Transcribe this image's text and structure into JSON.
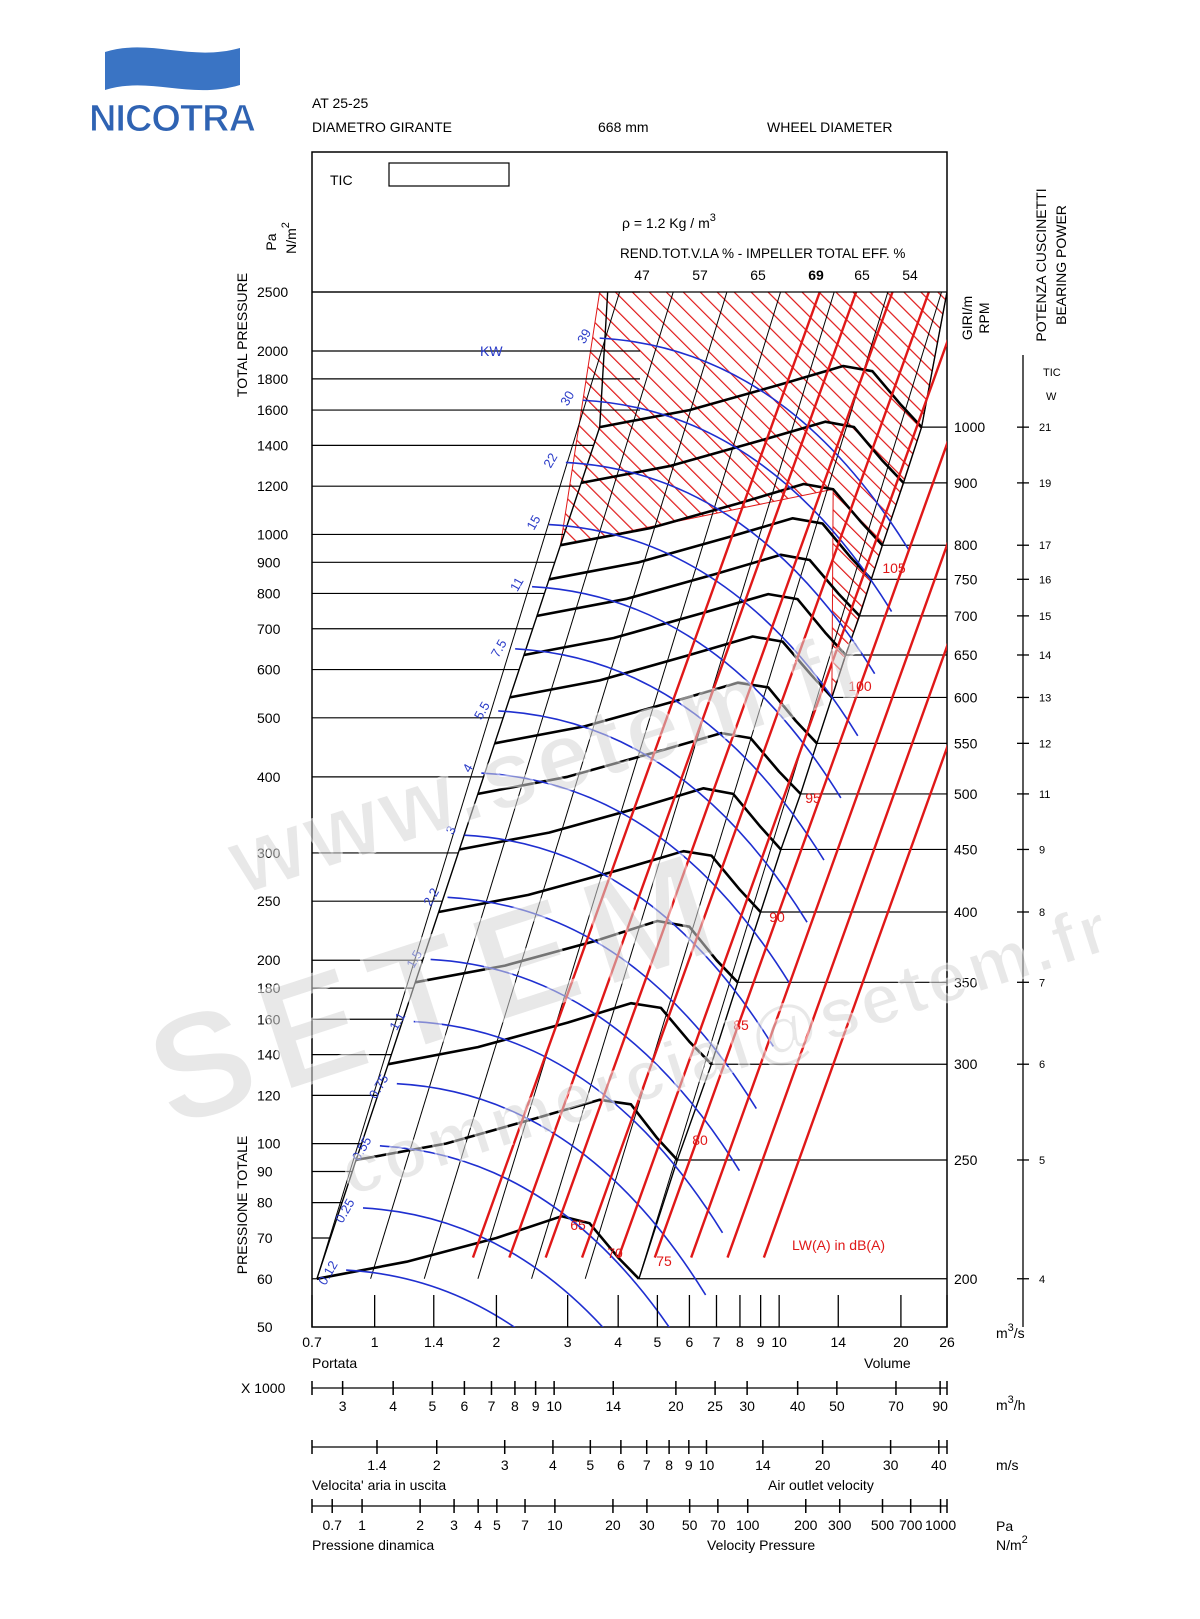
{
  "brand": {
    "name": "NICOTRA",
    "colors": {
      "wave": "#3a74c4",
      "text": "#2f63b3",
      "accent": "#ffffff"
    }
  },
  "header": {
    "model": "AT 25-25",
    "diam_label_it": "DIAMETRO GIRANTE",
    "diam_value": "668 mm",
    "diam_label_en": "WHEEL DIAMETER"
  },
  "chart_labels": {
    "tic": "TIC",
    "rho_prefix": "ρ = 1.2 Kg / m",
    "rho_exp": "3",
    "eff_title": "REND.TOT.V.LA % - IMPELLER TOTAL EFF. %",
    "kw": "KW",
    "rpm_it": "GIRI/m",
    "rpm_en": "RPM",
    "bearing_it": "POTENZA CUSCINETTI",
    "bearing_en": "BEARING POWER",
    "bearing_tic": "TIC",
    "bearing_w": "W",
    "total_pressure": "TOTAL PRESSURE",
    "pressione_totale": "PRESSIONE TOTALE",
    "pa": "Pa",
    "nm2": "N/m",
    "nm2_exp": "2",
    "lw": "LW(A) in dB(A)",
    "m3s": "m",
    "m3s_exp": "3",
    "m3s_suffix": "/s",
    "portata": "Portata",
    "volume": "Volume",
    "x1000": "X 1000",
    "m3h": "m",
    "m3h_exp": "3",
    "m3h_suffix": "/h",
    "ms": "m/s",
    "vel_it": "Velocita' aria in uscita",
    "vel_en": "Air outlet velocity",
    "pd_unit1": "Pa",
    "pd_unit2": "N/m",
    "pd_unit2_exp": "2",
    "pd_it": "Pressione dinamica",
    "pd_en": "Velocity Pressure"
  },
  "colors": {
    "curve": "#000000",
    "power": "#1f2fd0",
    "power_label": "#2a3bc8",
    "noise": "#e01818",
    "hatch": "#e01818",
    "watermark": "#c9c9c9"
  },
  "watermark": {
    "line1": "www.setem.fr",
    "line2": "SETEM",
    "line3": "commercial@setem.fr"
  },
  "chart_data": {
    "type": "line",
    "title": "AT 25-25",
    "xlabel": "Portata / Volume (m3/s)",
    "ylabel": "TOTAL PRESSURE (Pa)",
    "xscale": "log",
    "yscale": "log",
    "xlim": [
      0.7,
      26
    ],
    "ylim": [
      50,
      2500
    ],
    "x_ticks": [
      "0.7",
      "1",
      "1.4",
      "2",
      "3",
      "4",
      "5",
      "6",
      "7",
      "8",
      "9",
      "10",
      "14",
      "20",
      "26"
    ],
    "y_ticks": [
      "2500",
      "2000",
      "1800",
      "1600",
      "1400",
      "1200",
      "1000",
      "900",
      "800",
      "700",
      "600",
      "500",
      "400",
      "300",
      "250",
      "200",
      "180",
      "160",
      "140",
      "120",
      "100",
      "90",
      "80",
      "70",
      "60",
      "50"
    ],
    "efficiency_labels": [
      "47",
      "57",
      "65",
      "69",
      "65",
      "54"
    ],
    "power_kw_labels": [
      "0.12",
      "0.25",
      "0.55",
      "0.75",
      "1.1",
      "1.5",
      "2.2",
      "3",
      "4",
      "5.5",
      "7.5",
      "11",
      "15",
      "22",
      "30",
      "39"
    ],
    "noise_dba_labels": [
      "65",
      "70",
      "75",
      "80",
      "85",
      "90",
      "95",
      "100",
      "105"
    ],
    "rpm_labels": [
      "1000",
      "900",
      "800",
      "750",
      "700",
      "650",
      "600",
      "550",
      "500",
      "450",
      "400",
      "350",
      "300",
      "250",
      "200"
    ],
    "bearing_power_labels": [
      "21",
      "19",
      "17",
      "16",
      "15",
      "14",
      "13",
      "12",
      "11",
      "9",
      "8",
      "7",
      "6",
      "5",
      "4"
    ],
    "secondary_axes": {
      "m3h_x1000": [
        "3",
        "4",
        "5",
        "6",
        "7",
        "8",
        "9",
        "10",
        "14",
        "20",
        "25",
        "30",
        "40",
        "50",
        "70",
        "90"
      ],
      "outlet_velocity_ms": [
        "1.4",
        "2",
        "3",
        "4",
        "5",
        "6",
        "7",
        "8",
        "9",
        "10",
        "14",
        "20",
        "30",
        "40"
      ],
      "velocity_pressure_pa": [
        "0.7",
        "1",
        "2",
        "3",
        "4",
        "5",
        "7",
        "10",
        "20",
        "30",
        "50",
        "70",
        "100",
        "200",
        "300",
        "500",
        "700",
        "1000"
      ]
    },
    "series": [
      {
        "rpm": 200,
        "x": [
          0.72,
          1.2,
          2.0,
          2.9,
          3.4,
          4.0,
          4.5
        ],
        "y": [
          60,
          64,
          70,
          76,
          74,
          65,
          60
        ]
      },
      {
        "rpm": 250,
        "x": [
          0.9,
          1.5,
          2.5,
          3.6,
          4.3,
          5.0,
          5.6
        ],
        "y": [
          94,
          100,
          110,
          118,
          116,
          102,
          94
        ]
      },
      {
        "rpm": 300,
        "x": [
          1.08,
          1.8,
          3.0,
          4.3,
          5.1,
          6.0,
          6.8
        ],
        "y": [
          135,
          144,
          158,
          170,
          167,
          147,
          135
        ]
      },
      {
        "rpm": 350,
        "x": [
          1.26,
          2.1,
          3.5,
          5.0,
          6.0,
          7.0,
          7.9
        ],
        "y": [
          184,
          196,
          215,
          232,
          227,
          200,
          184
        ]
      },
      {
        "rpm": 400,
        "x": [
          1.44,
          2.4,
          4.0,
          5.8,
          6.8,
          8.0,
          9.0
        ],
        "y": [
          240,
          256,
          281,
          302,
          297,
          261,
          240
        ]
      },
      {
        "rpm": 450,
        "x": [
          1.62,
          2.7,
          4.5,
          6.5,
          7.7,
          9.0,
          10.1
        ],
        "y": [
          304,
          324,
          356,
          383,
          375,
          331,
          304
        ]
      },
      {
        "rpm": 500,
        "x": [
          1.8,
          3.0,
          5.0,
          7.2,
          8.5,
          10.0,
          11.3
        ],
        "y": [
          375,
          400,
          440,
          472,
          463,
          408,
          375
        ]
      },
      {
        "rpm": 550,
        "x": [
          1.98,
          3.3,
          5.5,
          7.9,
          9.4,
          11.0,
          12.4
        ],
        "y": [
          454,
          484,
          532,
          571,
          561,
          494,
          454
        ]
      },
      {
        "rpm": 600,
        "x": [
          2.16,
          3.6,
          6.0,
          8.6,
          10.2,
          12.0,
          13.5
        ],
        "y": [
          540,
          576,
          634,
          680,
          667,
          588,
          540
        ]
      },
      {
        "rpm": 650,
        "x": [
          2.34,
          3.9,
          6.5,
          9.4,
          11.1,
          13.0,
          14.6
        ],
        "y": [
          634,
          676,
          744,
          798,
          783,
          690,
          634
        ]
      },
      {
        "rpm": 700,
        "x": [
          2.52,
          4.2,
          7.0,
          10.1,
          11.9,
          14.0,
          15.8
        ],
        "y": [
          735,
          784,
          862,
          926,
          908,
          800,
          735
        ]
      },
      {
        "rpm": 750,
        "x": [
          2.7,
          4.5,
          7.5,
          10.8,
          12.8,
          15.0,
          16.9
        ],
        "y": [
          844,
          900,
          990,
          1063,
          1042,
          918,
          844
        ]
      },
      {
        "rpm": 800,
        "x": [
          2.88,
          4.8,
          8.0,
          11.5,
          13.6,
          16.0,
          18.0
        ],
        "y": [
          960,
          1024,
          1126,
          1210,
          1186,
          1045,
          960
        ]
      },
      {
        "rpm": 900,
        "x": [
          3.24,
          5.4,
          9.0,
          13.0,
          15.3,
          18.0,
          20.3
        ],
        "y": [
          1215,
          1296,
          1426,
          1531,
          1501,
          1322,
          1215
        ]
      },
      {
        "rpm": 1000,
        "x": [
          3.6,
          6.0,
          10.0,
          14.4,
          17.0,
          20.0,
          22.5
        ],
        "y": [
          1500,
          1600,
          1760,
          1890,
          1853,
          1632,
          1500
        ]
      }
    ]
  }
}
